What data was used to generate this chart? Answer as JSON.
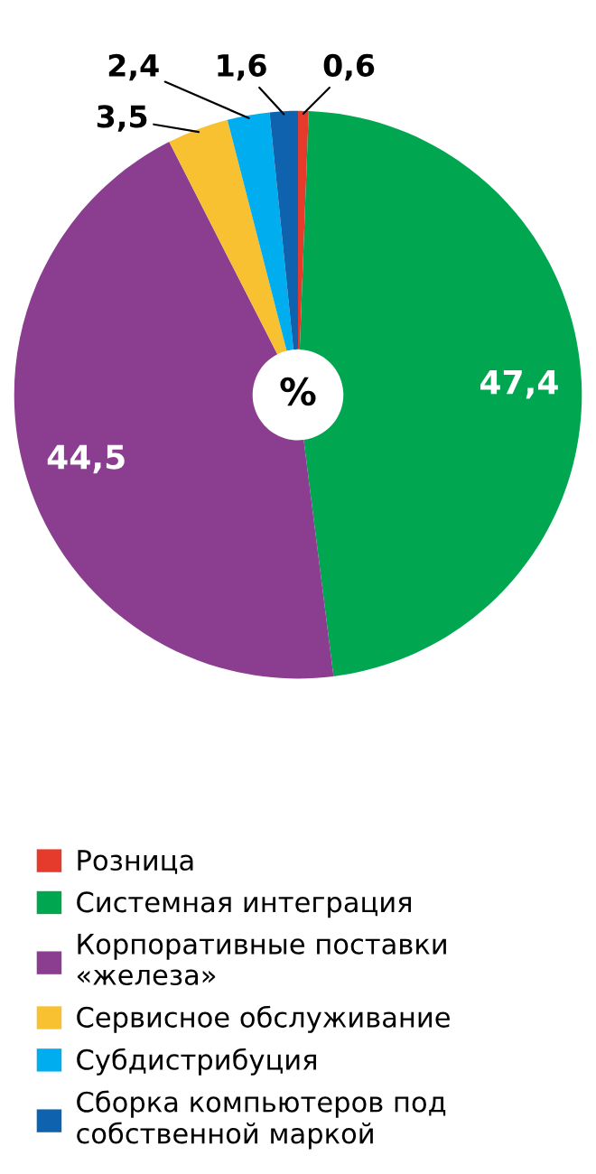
{
  "chart_data": {
    "type": "donut",
    "categories": [
      "Розница",
      "Системная интеграция",
      "Корпоративные поставки «железа»",
      "Сервисное обслуживание",
      "Субдистрибуция",
      "Сборка компьютеров под собственной маркой"
    ],
    "values": [
      0.6,
      47.4,
      44.5,
      3.5,
      2.4,
      1.6
    ],
    "value_labels": [
      "0,6",
      "47,4",
      "44,5",
      "3,5",
      "2,4",
      "1,6"
    ],
    "colors": [
      "#e53b2c",
      "#00a650",
      "#8b3d8f",
      "#f7c132",
      "#00aeef",
      "#0f63ae"
    ],
    "annotations": [
      "%"
    ],
    "legend": "bottom"
  }
}
